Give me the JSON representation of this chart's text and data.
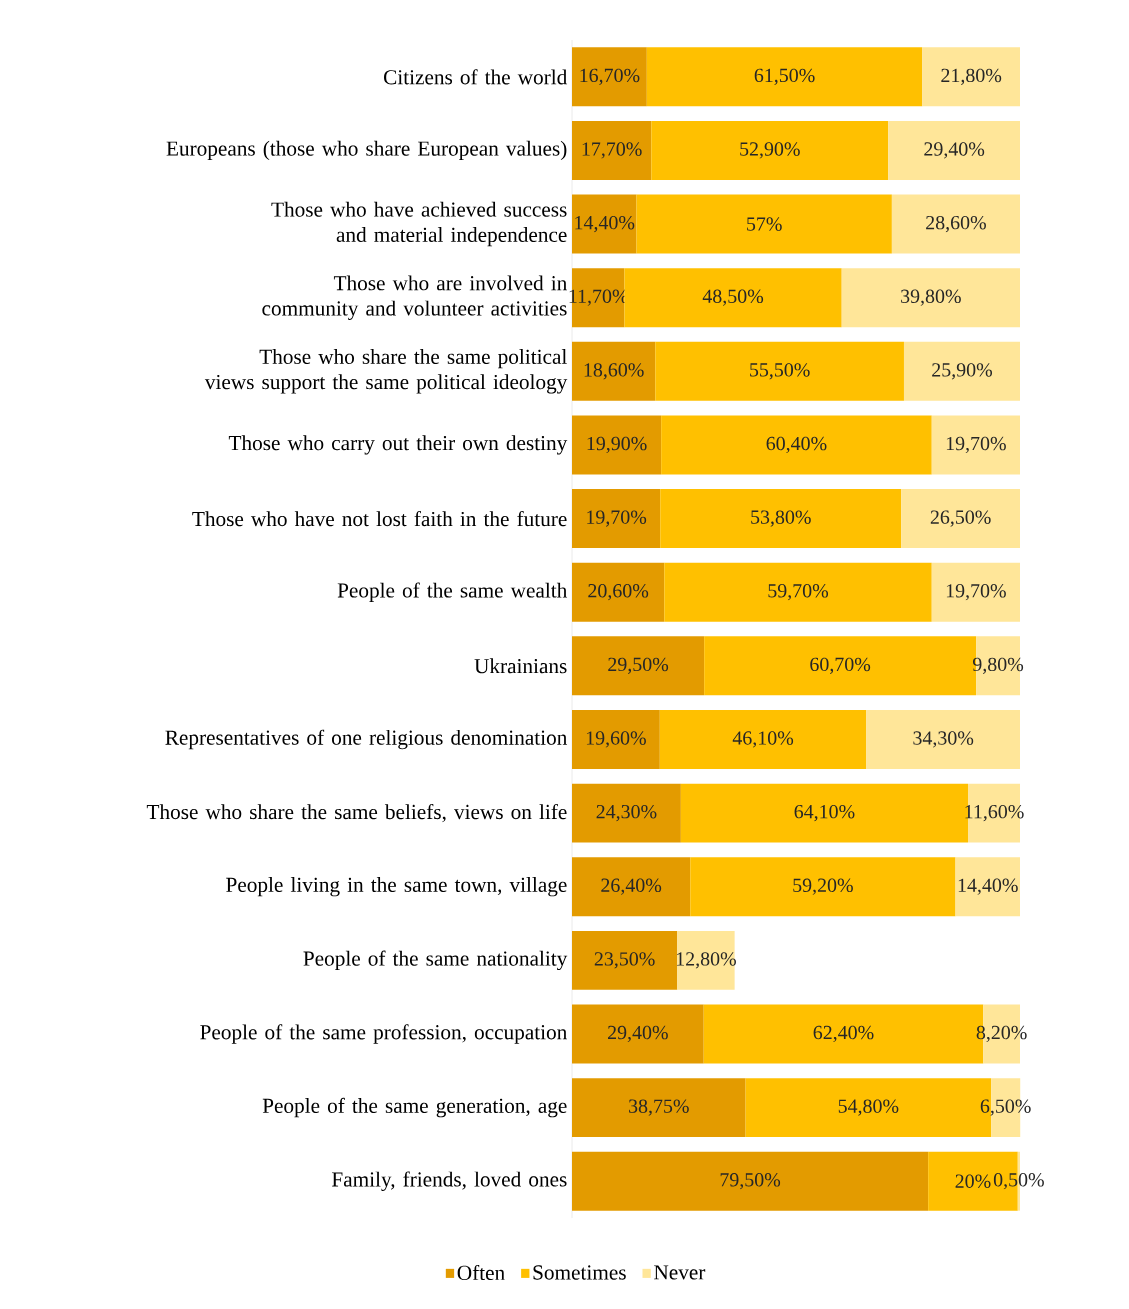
{
  "chart_data": {
    "type": "bar",
    "orientation": "horizontal",
    "stacked": true,
    "legend": "bottom",
    "tick_labels": "y",
    "xlim": [
      0,
      100
    ],
    "categories": [
      "Citizens of the world",
      "Europeans (those who share European values)",
      "Those who have achieved success and material independence",
      "Those who are involved in community and volunteer activities",
      "Those who share the same political views support the same political ideology",
      "Those who carry out their own destiny",
      "Those who have not lost faith in the future",
      "People of the same wealth",
      "Ukrainians",
      "Representatives of one religious denomination",
      "Those who share the same beliefs, views on life",
      "People living in the same town, village",
      "People of the same nationality",
      "People of the same profession, occupation",
      "People of the same generation, age",
      "Family, friends, loved ones"
    ],
    "series": [
      {
        "name": "Often",
        "color": "#e39b00",
        "values": [
          16.7,
          17.7,
          14.4,
          11.7,
          18.6,
          19.9,
          19.7,
          20.6,
          29.5,
          19.6,
          24.3,
          26.4,
          23.5,
          29.4,
          38.75,
          79.5
        ],
        "value_labels": [
          "16,70%",
          "17,70%",
          "14,40%",
          "11,70%",
          "18,60%",
          "19,90%",
          "19,70%",
          "20,60%",
          "29,50%",
          "19,60%",
          "24,30%",
          "26,40%",
          "23,50%",
          "29,40%",
          "38,75%",
          "79,50%"
        ]
      },
      {
        "name": "Sometimes",
        "color": "#ffc000",
        "values": [
          61.5,
          52.9,
          57,
          48.5,
          55.5,
          60.4,
          53.8,
          59.7,
          60.7,
          46.1,
          64.1,
          59.2,
          null,
          62.4,
          54.8,
          20
        ],
        "value_labels": [
          "61,50%",
          "52,90%",
          "57%",
          "48,50%",
          "55,50%",
          "60,40%",
          "53,80%",
          "59,70%",
          "60,70%",
          "46,10%",
          "64,10%",
          "59,20%",
          null,
          "62,40%",
          "54,80%",
          "20%"
        ]
      },
      {
        "name": "Never",
        "color": "#ffe699",
        "values": [
          21.8,
          29.4,
          28.6,
          39.8,
          25.9,
          19.7,
          26.5,
          19.7,
          9.8,
          34.3,
          11.6,
          14.4,
          12.8,
          8.2,
          6.5,
          0.5
        ],
        "value_labels": [
          "21,80%",
          "29,40%",
          "28,60%",
          "39,80%",
          "25,90%",
          "19,70%",
          "26,50%",
          "19,70%",
          "9,80%",
          "34,30%",
          "11,60%",
          "14,40%",
          "12,80%",
          "8,20%",
          "6,50%",
          "0,50%"
        ]
      }
    ]
  }
}
